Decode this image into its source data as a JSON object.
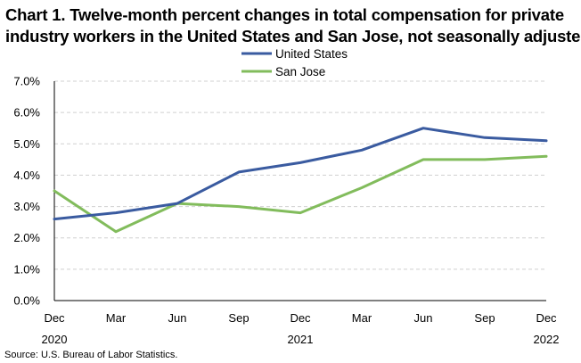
{
  "chart_data": {
    "type": "line",
    "title_lines": [
      "Chart 1. Twelve-month percent changes in total compensation for private",
      "industry workers in the United States and San Jose, not seasonally adjusted"
    ],
    "categories": [
      "Dec",
      "Mar",
      "Jun",
      "Sep",
      "Dec",
      "Mar",
      "Jun",
      "Sep",
      "Dec"
    ],
    "year_labels": [
      "2020",
      "",
      "",
      "",
      "2021",
      "",
      "",
      "",
      "2022"
    ],
    "series": [
      {
        "name": "United States",
        "color": "#3a5ba0",
        "values": [
          2.6,
          2.8,
          3.1,
          4.1,
          4.4,
          4.8,
          5.5,
          5.2,
          5.1
        ]
      },
      {
        "name": "San Jose",
        "color": "#82bc5c",
        "values": [
          3.5,
          2.2,
          3.1,
          3.0,
          2.8,
          3.6,
          4.5,
          4.5,
          4.6
        ]
      }
    ],
    "y_ticks": [
      "0.0%",
      "1.0%",
      "2.0%",
      "3.0%",
      "4.0%",
      "5.0%",
      "6.0%",
      "7.0%"
    ],
    "ylim": [
      0,
      7
    ],
    "xlabel": "",
    "ylabel": "",
    "grid": true,
    "legend_position": "top-center",
    "source": "Source: U.S. Bureau of Labor Statistics."
  }
}
